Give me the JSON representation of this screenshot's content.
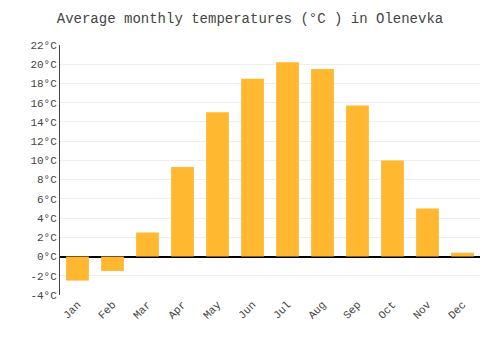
{
  "chart_data": {
    "type": "bar",
    "title": "Average monthly temperatures (°C ) in Olenevka",
    "categories": [
      "Jan",
      "Feb",
      "Mar",
      "Apr",
      "May",
      "Jun",
      "Jul",
      "Aug",
      "Sep",
      "Oct",
      "Nov",
      "Dec"
    ],
    "values": [
      -2.5,
      -1.5,
      2.5,
      9.3,
      15.0,
      18.5,
      20.2,
      19.5,
      15.7,
      10.0,
      5.0,
      0.4
    ],
    "color": "#FFB830",
    "ylim": [
      -4,
      22
    ],
    "yticks": [
      {
        "value": -4,
        "label": "-4°C"
      },
      {
        "value": -2,
        "label": "-2°C"
      },
      {
        "value": 0,
        "label": "0°C"
      },
      {
        "value": 2,
        "label": "2°C"
      },
      {
        "value": 4,
        "label": "4°C"
      },
      {
        "value": 6,
        "label": "6°C"
      },
      {
        "value": 8,
        "label": "8°C"
      },
      {
        "value": 10,
        "label": "10°C"
      },
      {
        "value": 12,
        "label": "12°C"
      },
      {
        "value": 14,
        "label": "14°C"
      },
      {
        "value": 16,
        "label": "16°C"
      },
      {
        "value": 18,
        "label": "18°C"
      },
      {
        "value": 20,
        "label": "20°C"
      },
      {
        "value": 22,
        "label": "22°C"
      }
    ],
    "grid": true
  }
}
